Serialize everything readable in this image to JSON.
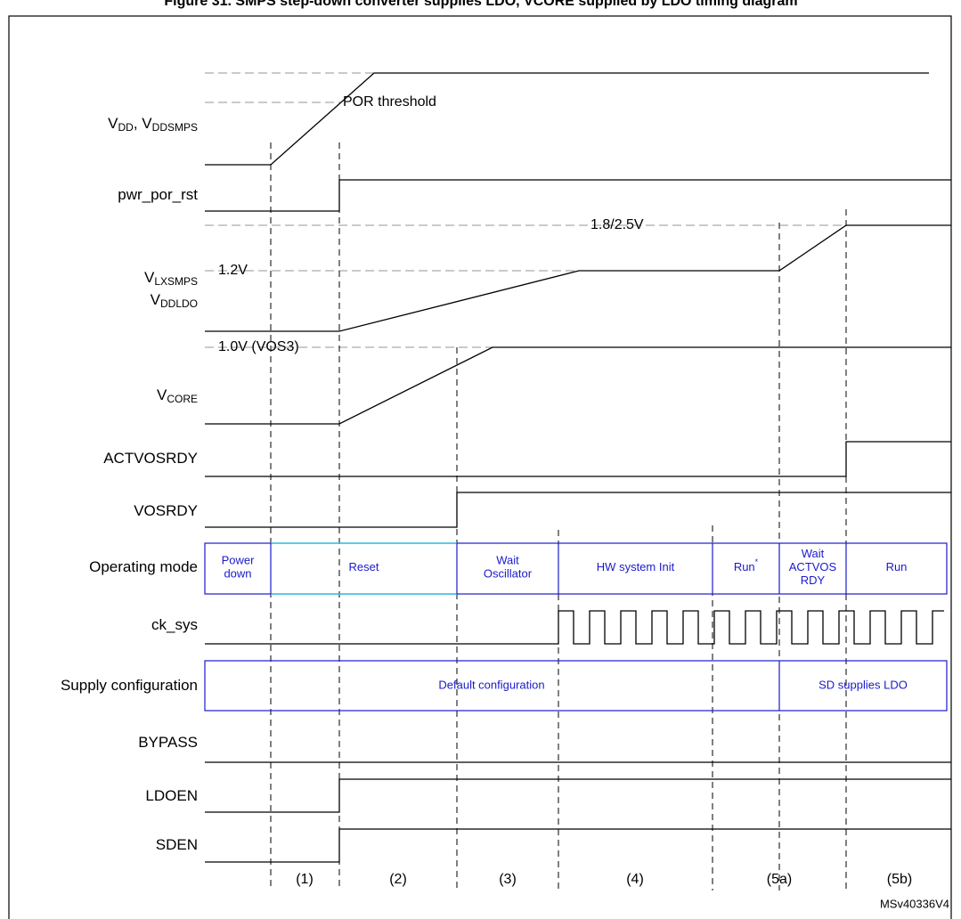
{
  "title": "Figure 31. SMPS step-down converter supplies LDO, VCORE supplied by LDO timing diagram",
  "signals": [
    {
      "parts": [
        {
          "t": "V"
        },
        {
          "s": "DD"
        },
        {
          "t": ", V"
        },
        {
          "s": "DDSMPS"
        }
      ]
    },
    {
      "parts": [
        {
          "t": "pwr_por_rst"
        }
      ]
    },
    {
      "parts": [
        {
          "t": "V"
        },
        {
          "s": "LXSMPS"
        }
      ]
    },
    {
      "parts": [
        {
          "t": "V"
        },
        {
          "s": "DDLDO"
        }
      ]
    },
    {
      "parts": [
        {
          "t": "V"
        },
        {
          "s": "CORE"
        }
      ]
    },
    {
      "parts": [
        {
          "t": "ACTVOSRDY"
        }
      ]
    },
    {
      "parts": [
        {
          "t": "VOSRDY"
        }
      ]
    },
    {
      "parts": [
        {
          "t": "Operating mode"
        }
      ]
    },
    {
      "parts": [
        {
          "t": "ck_sys"
        }
      ]
    },
    {
      "parts": [
        {
          "t": "Supply configuration"
        }
      ]
    },
    {
      "parts": [
        {
          "t": "BYPASS"
        }
      ]
    },
    {
      "parts": [
        {
          "t": "LDOEN"
        }
      ]
    },
    {
      "parts": [
        {
          "t": "SDEN"
        }
      ]
    }
  ],
  "levels": {
    "por": "POR threshold",
    "high": "1.8/2.5V",
    "mid": "1.2V",
    "core": "1.0V (VOS3)"
  },
  "modes": [
    {
      "lines": [
        "Power",
        "down"
      ]
    },
    {
      "lines": [
        "Reset"
      ]
    },
    {
      "lines": [
        "Wait",
        "Oscillator"
      ]
    },
    {
      "lines": [
        "HW system Init"
      ]
    },
    {
      "lines": [
        "Run"
      ],
      "sup": "*"
    },
    {
      "lines": [
        "Wait",
        "ACTVOS",
        "RDY"
      ]
    },
    {
      "lines": [
        "Run"
      ]
    }
  ],
  "supply": [
    "Default configuration",
    "SD supplies LDO"
  ],
  "phases": [
    "(1)",
    "(2)",
    "(3)",
    "(4)",
    "(5a)",
    "(5b)"
  ],
  "code": "MSv40336V4"
}
